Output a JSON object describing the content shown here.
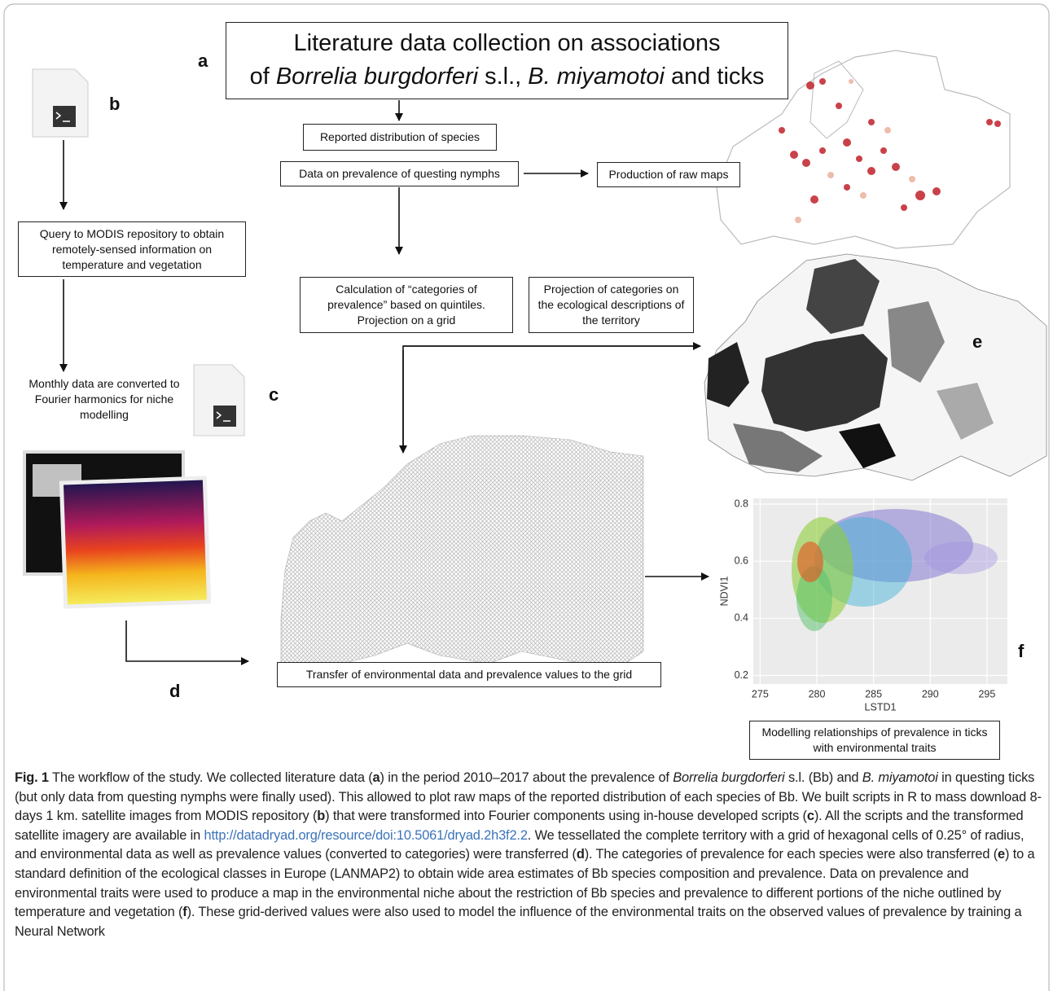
{
  "panel_labels": [
    "a",
    "b",
    "c",
    "d",
    "e",
    "f"
  ],
  "title": {
    "lines": [
      [
        {
          "text": "Literature data collection on associations"
        }
      ],
      [
        {
          "text": "of "
        },
        {
          "text": "Borrelia burgdorferi",
          "italic": true
        },
        {
          "text": " s.l., "
        },
        {
          "text": "B. miyamotoi",
          "italic": true
        },
        {
          "text": " and ticks"
        }
      ]
    ]
  },
  "boxes": {
    "reported": "Reported distribution of species",
    "prevalence": "Data on prevalence of questing nymphs",
    "raw_maps": "Production of raw maps",
    "query": "Query to MODIS repository to obtain remotely-sensed information on temperature and vegetation",
    "categories": "Calculation of “categories of prevalence” based on quintiles. Projection on a grid",
    "projection": "Projection of categories on the ecological descriptions of the territory",
    "fourier": "Monthly data are converted to Fourier harmonics for niche modelling",
    "transfer": "Transfer of environmental data and prevalence values to the grid",
    "modelling": "Modelling relationships of prevalence in ticks with environmental traits"
  },
  "scatter_plot": {
    "xlabel": "LSTD1",
    "ylabel": "NDVI1",
    "xlim": [
      274.4,
      296.8
    ],
    "ylim": [
      0.17,
      0.82
    ],
    "xticks": [
      275,
      280,
      285,
      290,
      295
    ],
    "yticks": [
      0.2,
      0.4,
      0.6,
      0.8
    ]
  },
  "caption": [
    {
      "text": "Fig. 1",
      "bold": true
    },
    {
      "text": "  The workflow of the study. We collected literature data ("
    },
    {
      "text": "a",
      "bold": true
    },
    {
      "text": ") in the period 2010–2017 about the prevalence of "
    },
    {
      "text": "Borrelia burgdorferi",
      "italic": true
    },
    {
      "text": " s.l. (Bb) and "
    },
    {
      "text": "B. miyamotoi",
      "italic": true
    },
    {
      "text": " in questing ticks (but only data from questing nymphs were finally used). This allowed to plot raw maps of the reported distribution of each species of Bb. We built scripts in R to mass download 8-days 1 km. satellite images from MODIS repository ("
    },
    {
      "text": "b",
      "bold": true
    },
    {
      "text": ") that were transformed into Fourier components using in-house developed scripts ("
    },
    {
      "text": "c",
      "bold": true
    },
    {
      "text": "). All the scripts and the transformed satellite imagery are available in "
    },
    {
      "text": "http://datadryad.org/resource/doi:10.5061/dryad.2h3f2.2",
      "link": true
    },
    {
      "text": ". We tessellated the complete territory with a grid of hexagonal cells of 0.25° of radius, and environmental data as well as prevalence values (converted to categories) were transferred ("
    },
    {
      "text": "d",
      "bold": true
    },
    {
      "text": "). The categories of prevalence for each species were also transferred ("
    },
    {
      "text": "e",
      "bold": true
    },
    {
      "text": ") to a standard definition of the ecological classes in Europe (LANMAP2) to obtain wide area estimates of Bb species composition and prevalence. Data on prevalence and environmental traits were used to produce a map in the environmental niche about the restriction of Bb species and prevalence to different portions of the niche outlined by temperature and vegetation ("
    },
    {
      "text": "f",
      "bold": true
    },
    {
      "text": "). These grid-derived values were also used to model the influence of the environmental traits on the observed values of prevalence by training a Neural Network"
    }
  ]
}
